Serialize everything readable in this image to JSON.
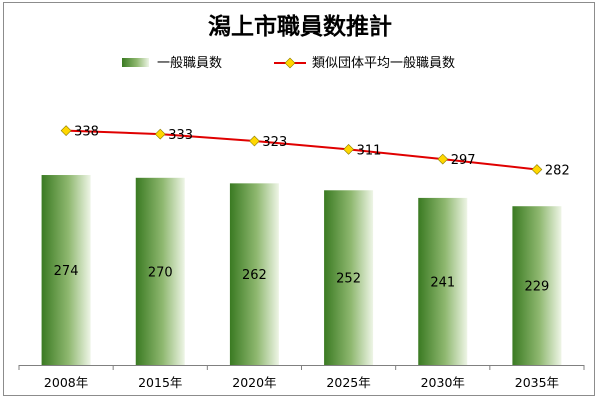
{
  "chart_data": {
    "type": "bar",
    "title": "潟上市職員数推計",
    "categories": [
      "2008年",
      "2015年",
      "2020年",
      "2025年",
      "2030年",
      "2035年"
    ],
    "series": [
      {
        "name": "一般職員数",
        "type": "bar",
        "values": [
          274,
          270,
          262,
          252,
          241,
          229
        ],
        "color": "#3f7f2a"
      },
      {
        "name": "類似団体平均一般職員数",
        "type": "line",
        "values": [
          338,
          333,
          323,
          311,
          297,
          282
        ],
        "color": "#e00000",
        "marker_color": "#ffd700"
      }
    ],
    "ylim": [
      0,
      375
    ],
    "grid": false,
    "legend_position": "top"
  }
}
